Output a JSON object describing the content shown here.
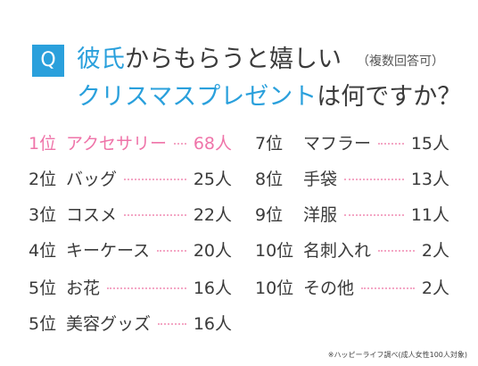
{
  "header": {
    "badge": "Q",
    "title_line1_blue": "彼氏",
    "title_line1_rest": "からもらうと嬉しい",
    "note": "（複数回答可）",
    "title_line2_blue": "クリスマスプレゼント",
    "title_line2_rest": "は何ですか？"
  },
  "colors": {
    "accent_blue": "#2aa0dc",
    "accent_pink": "#ef74a9"
  },
  "ranking_left": [
    {
      "rank": "1位",
      "name": "アクセサリー",
      "count": "68人"
    },
    {
      "rank": "2位",
      "name": "バッグ",
      "count": "25人"
    },
    {
      "rank": "3位",
      "name": "コスメ",
      "count": "22人"
    },
    {
      "rank": "4位",
      "name": "キーケース",
      "count": "20人"
    },
    {
      "rank": "5位",
      "name": "お花",
      "count": "16人"
    },
    {
      "rank": "5位",
      "name": "美容グッズ",
      "count": "16人"
    }
  ],
  "ranking_right": [
    {
      "rank": "7位",
      "name": "マフラー",
      "count": "15人"
    },
    {
      "rank": "8位",
      "name": "手袋",
      "count": "13人"
    },
    {
      "rank": "9位",
      "name": "洋服",
      "count": "11人"
    },
    {
      "rank": "10位",
      "name": "名刺入れ",
      "count": "2人"
    },
    {
      "rank": "10位",
      "name": "その他",
      "count": "2人"
    }
  ],
  "footnote": "※ハッピーライフ調べ(成人女性100人対象)"
}
